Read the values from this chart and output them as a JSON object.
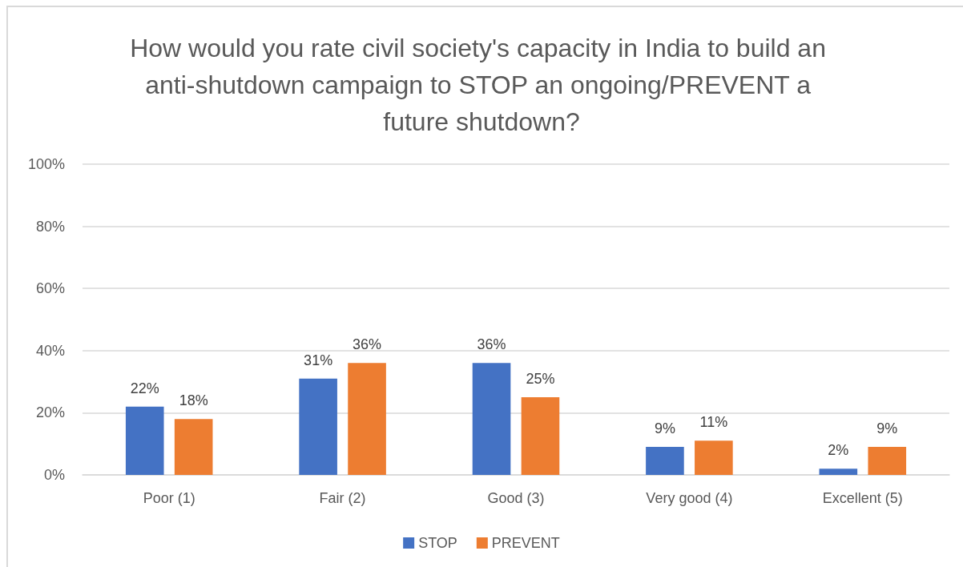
{
  "chart_data": {
    "type": "bar",
    "title": "How would you rate civil society's capacity in India to build an anti-shutdown campaign to STOP an ongoing/PREVENT a future shutdown?",
    "categories": [
      "Poor (1)",
      "Fair (2)",
      "Good (3)",
      "Very good (4)",
      "Excellent (5)"
    ],
    "series": [
      {
        "name": "STOP",
        "color": "#4472c4",
        "values": [
          22,
          31,
          36,
          9,
          2
        ],
        "value_labels": [
          "22%",
          "31%",
          "36%",
          "9%",
          "2%"
        ]
      },
      {
        "name": "PREVENT",
        "color": "#ed7d31",
        "values": [
          18,
          36,
          25,
          11,
          9
        ],
        "value_labels": [
          "18%",
          "36%",
          "25%",
          "11%",
          "9%"
        ]
      }
    ],
    "ylim": [
      0,
      100
    ],
    "yticks": [
      {
        "value": 0,
        "label": "0%"
      },
      {
        "value": 20,
        "label": "20%"
      },
      {
        "value": 40,
        "label": "40%"
      },
      {
        "value": 60,
        "label": "60%"
      },
      {
        "value": 80,
        "label": "80%"
      },
      {
        "value": 100,
        "label": "100%"
      }
    ],
    "grid": "y",
    "legend": "bottom"
  }
}
